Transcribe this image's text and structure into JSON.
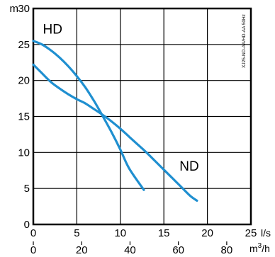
{
  "chart_data": {
    "type": "line",
    "x_axis": {
      "unit": "l/s",
      "range": [
        0,
        25
      ],
      "ticks": [
        0,
        5,
        10,
        15,
        20,
        25
      ]
    },
    "x_axis_secondary": {
      "unit": "m",
      "unit_superscript": "3",
      "unit_suffix": "/h",
      "ticks": [
        0,
        20,
        40,
        60,
        80
      ]
    },
    "y_axis": {
      "unit": "m",
      "range": [
        0,
        30
      ],
      "ticks": [
        0,
        5,
        10,
        15,
        20,
        25,
        30
      ]
    },
    "grid": true,
    "curve_color": "#1f8fd0",
    "side_note": "XJ25-ND-AA/HD-AA 50Hz",
    "series": [
      {
        "name": "HD",
        "label_pos": [
          1.1,
          26.5
        ],
        "points": [
          [
            0,
            25.5
          ],
          [
            1,
            25
          ],
          [
            2,
            24.2
          ],
          [
            3,
            23.2
          ],
          [
            4,
            22
          ],
          [
            5,
            20.6
          ],
          [
            6,
            19
          ],
          [
            7,
            17.1
          ],
          [
            8,
            15
          ],
          [
            9,
            12.8
          ],
          [
            10,
            10.4
          ],
          [
            11,
            7.8
          ],
          [
            12.7,
            4.8
          ]
        ]
      },
      {
        "name": "ND",
        "label_pos": [
          16.8,
          7.5
        ],
        "points": [
          [
            0,
            22.2
          ],
          [
            1,
            21
          ],
          [
            2,
            19.8
          ],
          [
            3,
            18.9
          ],
          [
            4,
            18.1
          ],
          [
            5,
            17.4
          ],
          [
            6,
            16.8
          ],
          [
            7,
            16
          ],
          [
            8,
            15.2
          ],
          [
            9,
            14.3
          ],
          [
            10,
            13.3
          ],
          [
            11,
            12.2
          ],
          [
            12,
            11.1
          ],
          [
            13,
            10
          ],
          [
            14,
            8.8
          ],
          [
            15,
            7.6
          ],
          [
            16,
            6.4
          ],
          [
            17,
            5.2
          ],
          [
            18,
            4
          ],
          [
            18.8,
            3.3
          ]
        ]
      }
    ]
  }
}
